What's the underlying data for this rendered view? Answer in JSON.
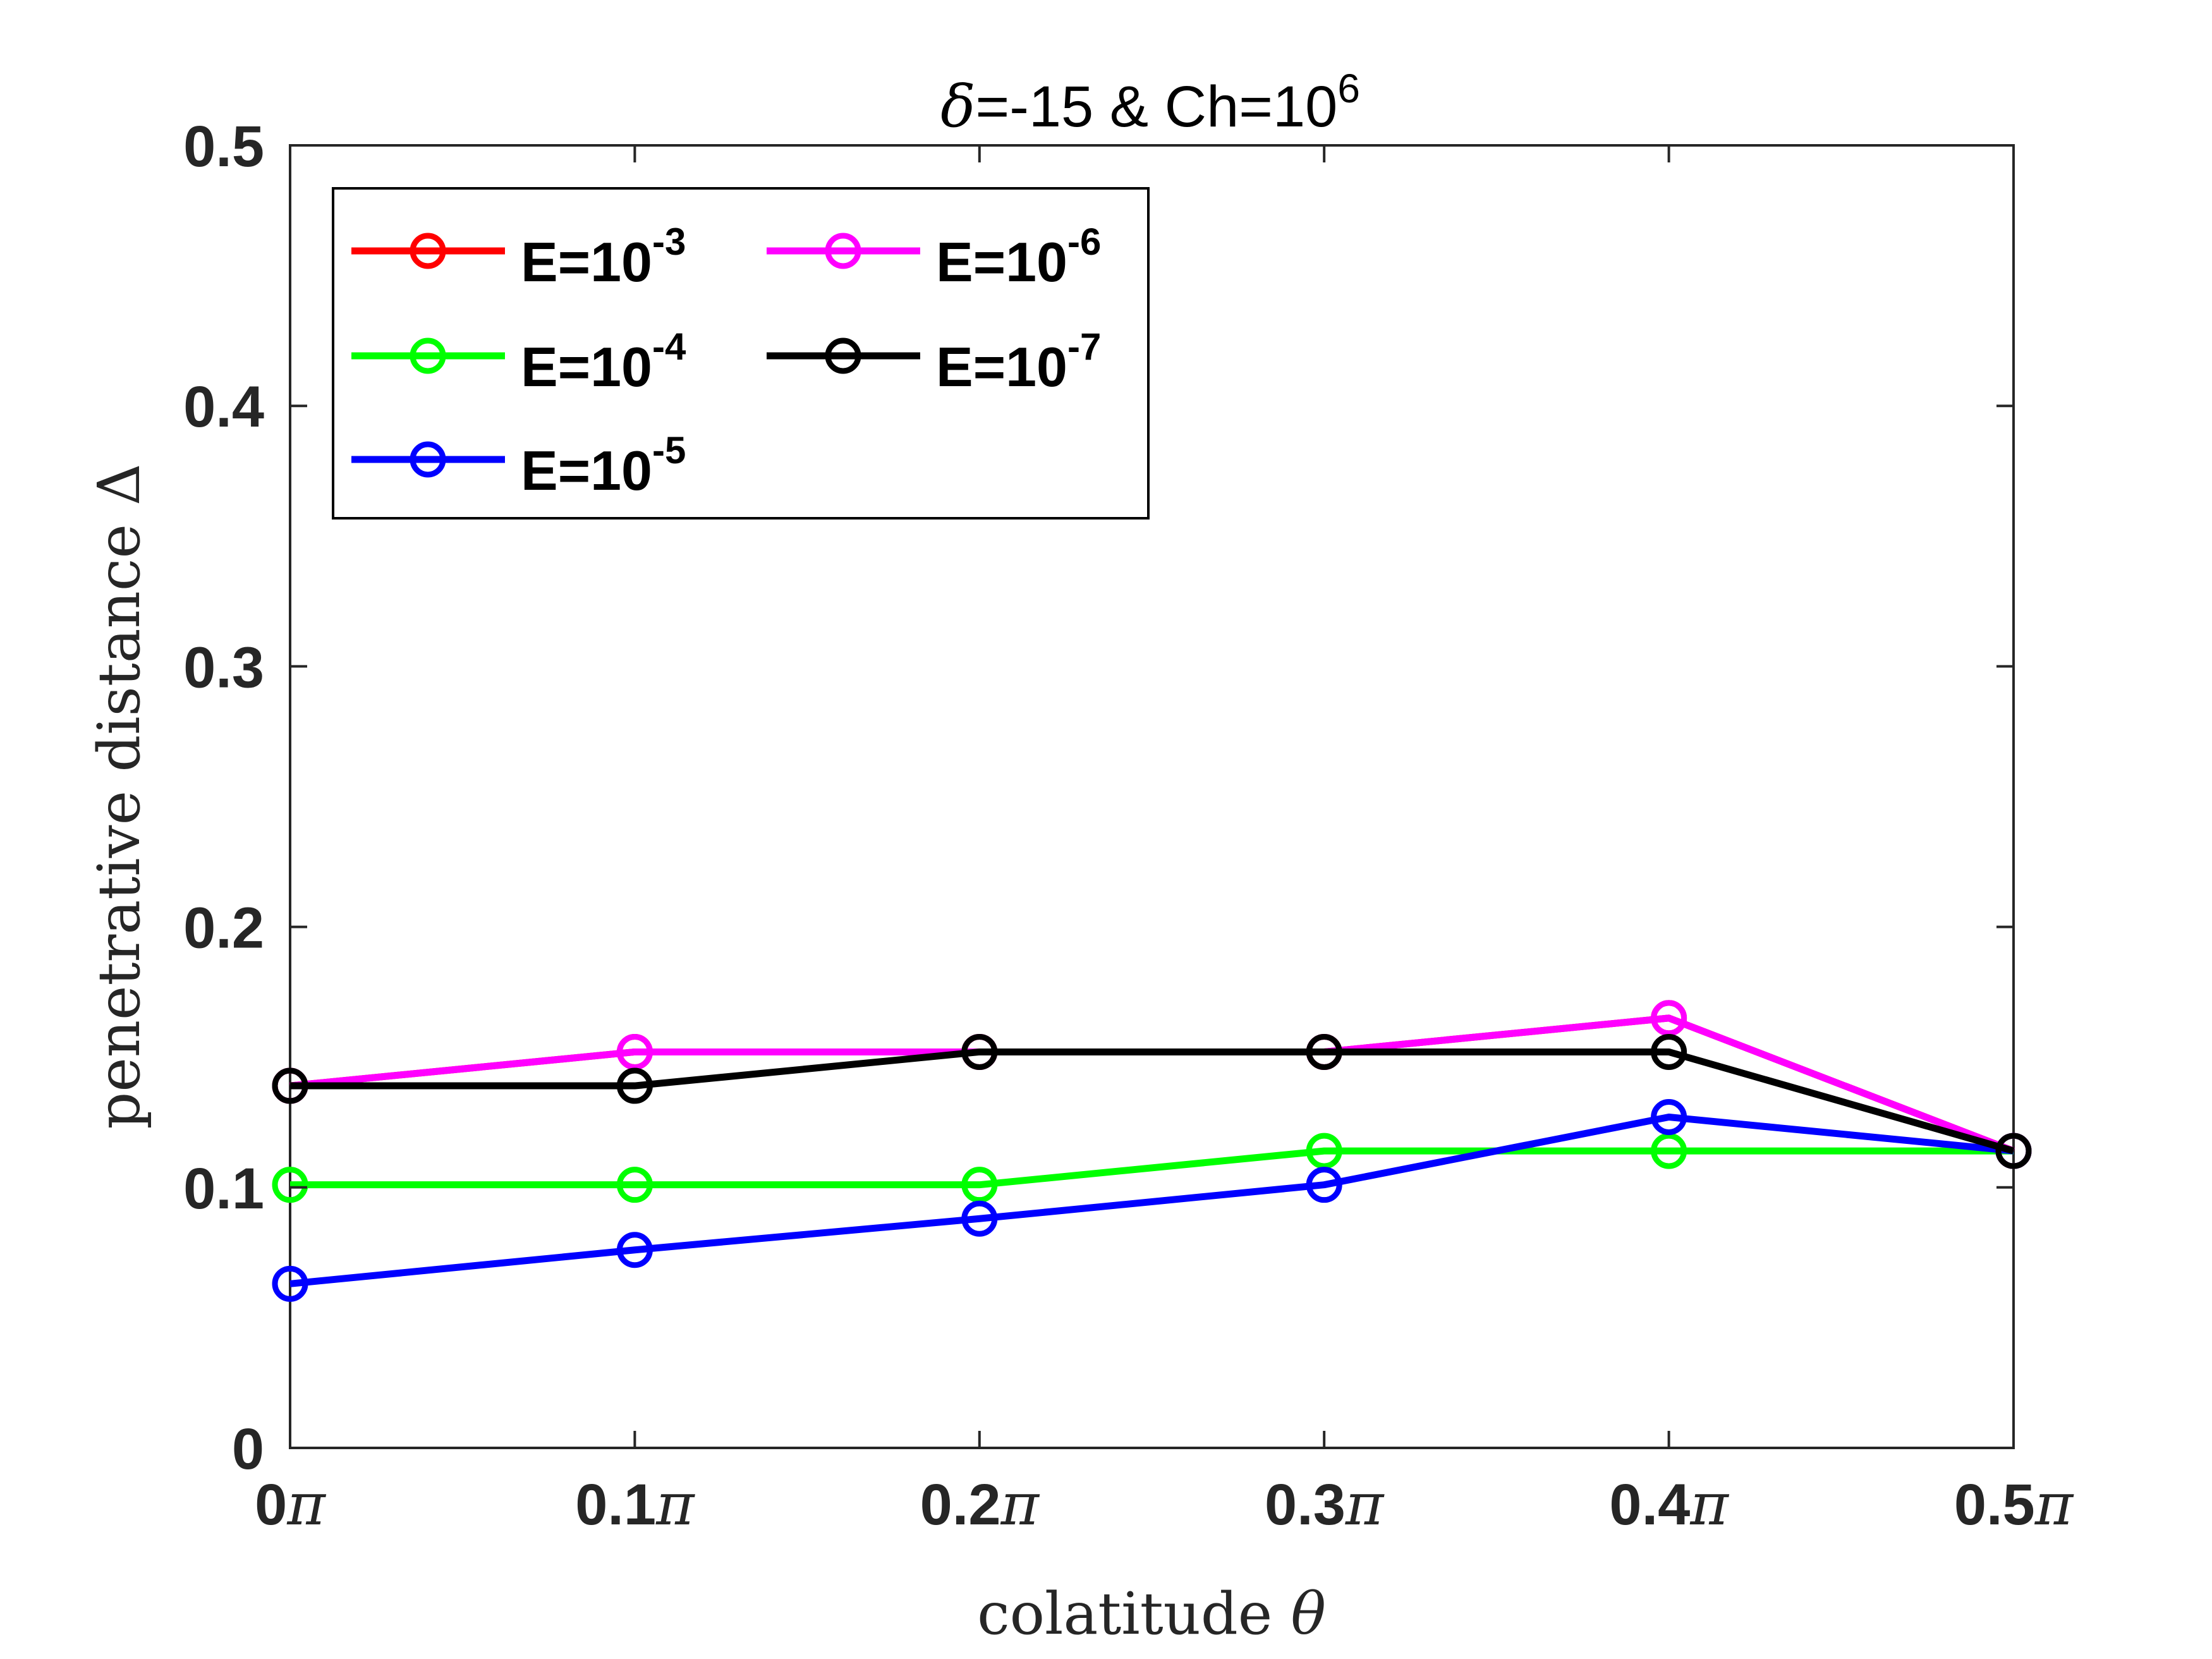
{
  "chart_data": {
    "type": "line",
    "title": {
      "symbol": "δ",
      "prefix": "=-15 & Ch=10",
      "superscript": "6"
    },
    "xlabel": {
      "text": "colatitude ",
      "symbol": "θ"
    },
    "ylabel": {
      "text": "penetrative distance ",
      "symbol": "Δ"
    },
    "x": [
      0,
      0.1,
      0.2,
      0.3,
      0.4,
      0.5
    ],
    "xticklabels": [
      {
        "num": "0",
        "unit": "π"
      },
      {
        "num": "0.1",
        "unit": "π"
      },
      {
        "num": "0.2",
        "unit": "π"
      },
      {
        "num": "0.3",
        "unit": "π"
      },
      {
        "num": "0.4",
        "unit": "π"
      },
      {
        "num": "0.5",
        "unit": "π"
      }
    ],
    "yticks": [
      0,
      0.1,
      0.2,
      0.3,
      0.4,
      0.5
    ],
    "yticklabels": [
      "0",
      "0.1",
      "0.2",
      "0.3",
      "0.4",
      "0.5"
    ],
    "xlim": [
      0,
      0.5
    ],
    "ylim": [
      0,
      0.5
    ],
    "grid": false,
    "legend_placement": "top-left",
    "series": [
      {
        "name": "E=10",
        "exp": "-3",
        "color": "#ff0000",
        "values": [
          0.139,
          0.152,
          0.152,
          0.152,
          0.165,
          0.114
        ]
      },
      {
        "name": "E=10",
        "exp": "-4",
        "color": "#00ff00",
        "values": [
          0.101,
          0.101,
          0.101,
          0.114,
          0.114,
          0.114
        ]
      },
      {
        "name": "E=10",
        "exp": "-5",
        "color": "#0000ff",
        "values": [
          0.063,
          0.076,
          0.088,
          0.101,
          0.127,
          0.114
        ]
      },
      {
        "name": "E=10",
        "exp": "-6",
        "color": "#ff00ff",
        "values": [
          0.139,
          0.152,
          0.152,
          0.152,
          0.165,
          0.114
        ]
      },
      {
        "name": "E=10",
        "exp": "-7",
        "color": "#000000",
        "values": [
          0.139,
          0.139,
          0.152,
          0.152,
          0.152,
          0.114
        ]
      }
    ]
  }
}
